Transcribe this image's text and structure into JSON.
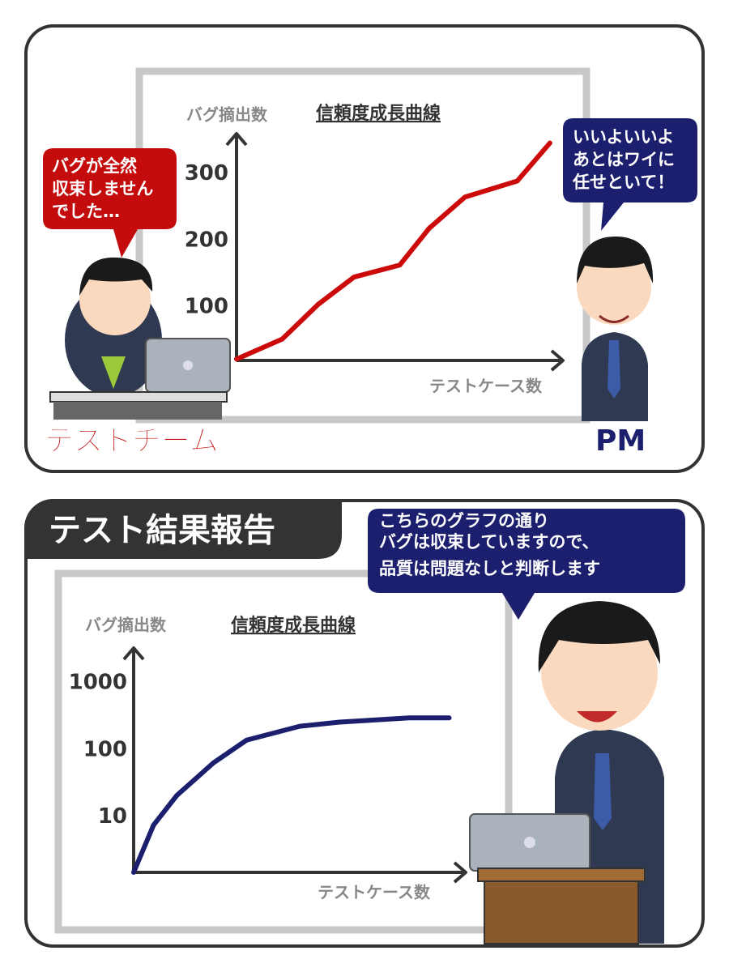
{
  "chart_data": [
    {
      "type": "line",
      "title": "信頼度成長曲線",
      "y_label": "バグ摘出数",
      "x_label": "テストケース数",
      "x": [
        0,
        14,
        25,
        36,
        50,
        59,
        70,
        86,
        96
      ],
      "series": [
        {
          "color": "#cc0a0a",
          "values": [
            22,
            52,
            104,
            145,
            163,
            218,
            265,
            289,
            346
          ]
        }
      ],
      "xlim": [
        0,
        100
      ],
      "ylim": [
        20,
        360
      ],
      "yticks": [
        100,
        200,
        300
      ]
    },
    {
      "type": "line",
      "title": "信頼度成長曲線",
      "y_label": "バグ摘出数",
      "x_label": "テストケース数",
      "x": [
        0,
        6,
        13,
        24,
        34,
        50,
        62,
        83,
        95
      ],
      "series": [
        {
          "color": "#1c1f6e",
          "values": [
            1.5,
            7.6,
            21,
            64,
            140,
            225,
            260,
            300,
            300
          ]
        }
      ],
      "xlim": [
        0,
        100
      ],
      "ylim": [
        1.5,
        3300
      ],
      "yticks": [
        10,
        100,
        1000
      ],
      "log_y": true
    }
  ],
  "panel1": {
    "test_team_bubble": [
      "バグが全然",
      "収束しません",
      "でした…"
    ],
    "pm_bubble": [
      "いいよいいよ",
      "あとはワイに",
      "任せといて！"
    ],
    "test_team_label": "テストチーム",
    "pm_label": "PM"
  },
  "panel2": {
    "header": "テスト結果報告",
    "bubble_note": "こちらのグラフの通り",
    "bubble": [
      "バグは収束していますので、",
      "品質は問題なしと判断します"
    ]
  }
}
